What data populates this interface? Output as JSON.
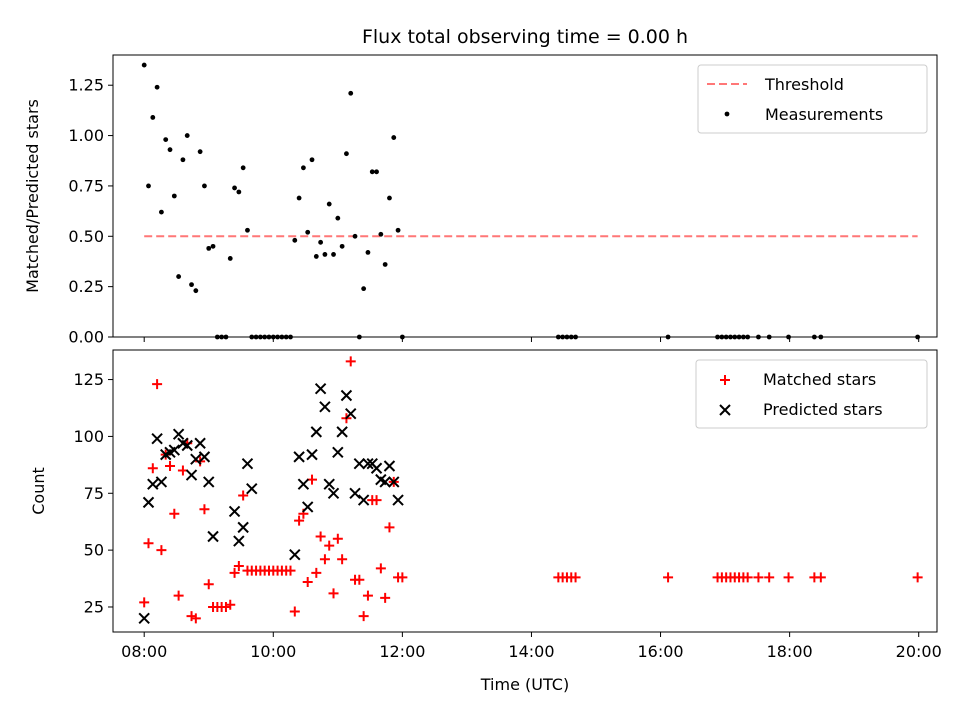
{
  "figure": {
    "title": "Flux total observing time = 0.00 h",
    "xlabel": "Time (UTC)"
  },
  "colors": {
    "threshold": "#ff7777",
    "measurements": "#000000",
    "matched": "#ff0000",
    "predicted": "#000000"
  },
  "chart_data": [
    {
      "type": "scatter",
      "panel": "top",
      "ylabel": "Matched/Predicted stars",
      "ylim": [
        0,
        1.4
      ],
      "xlim": [
        "07:31",
        "20:17"
      ],
      "yticks": [
        "0.00",
        "0.25",
        "0.50",
        "0.75",
        "1.00",
        "1.25"
      ],
      "grid": false,
      "legend_position": "top-right",
      "threshold": {
        "name": "Threshold",
        "value": 0.5,
        "x_range": [
          "08:00",
          "19:59"
        ]
      },
      "series": [
        {
          "name": "Measurements",
          "marker": "dot",
          "points": [
            [
              "08:00",
              1.35
            ],
            [
              "08:04",
              0.75
            ],
            [
              "08:08",
              1.09
            ],
            [
              "08:12",
              1.24
            ],
            [
              "08:16",
              0.62
            ],
            [
              "08:20",
              0.98
            ],
            [
              "08:24",
              0.93
            ],
            [
              "08:28",
              0.7
            ],
            [
              "08:32",
              0.3
            ],
            [
              "08:36",
              0.88
            ],
            [
              "08:40",
              1.0
            ],
            [
              "08:44",
              0.26
            ],
            [
              "08:48",
              0.23
            ],
            [
              "08:52",
              0.92
            ],
            [
              "08:56",
              0.75
            ],
            [
              "09:00",
              0.44
            ],
            [
              "09:04",
              0.45
            ],
            [
              "09:08",
              0.0
            ],
            [
              "09:12",
              0.0
            ],
            [
              "09:16",
              0.0
            ],
            [
              "09:20",
              0.39
            ],
            [
              "09:24",
              0.74
            ],
            [
              "09:28",
              0.72
            ],
            [
              "09:32",
              0.84
            ],
            [
              "09:36",
              0.53
            ],
            [
              "09:40",
              0.0
            ],
            [
              "09:44",
              0.0
            ],
            [
              "09:48",
              0.0
            ],
            [
              "09:52",
              0.0
            ],
            [
              "09:56",
              0.0
            ],
            [
              "10:00",
              0.0
            ],
            [
              "10:04",
              0.0
            ],
            [
              "10:08",
              0.0
            ],
            [
              "10:12",
              0.0
            ],
            [
              "10:16",
              0.0
            ],
            [
              "10:20",
              0.48
            ],
            [
              "10:24",
              0.69
            ],
            [
              "10:28",
              0.84
            ],
            [
              "10:32",
              0.52
            ],
            [
              "10:36",
              0.88
            ],
            [
              "10:40",
              0.4
            ],
            [
              "10:44",
              0.47
            ],
            [
              "10:48",
              0.41
            ],
            [
              "10:52",
              0.66
            ],
            [
              "10:56",
              0.41
            ],
            [
              "11:00",
              0.59
            ],
            [
              "11:04",
              0.45
            ],
            [
              "11:08",
              0.91
            ],
            [
              "11:12",
              1.21
            ],
            [
              "11:16",
              0.5
            ],
            [
              "11:20",
              0.0
            ],
            [
              "11:24",
              0.24
            ],
            [
              "11:28",
              0.42
            ],
            [
              "11:32",
              0.82
            ],
            [
              "11:36",
              0.82
            ],
            [
              "11:40",
              0.51
            ],
            [
              "11:44",
              0.36
            ],
            [
              "11:48",
              0.69
            ],
            [
              "11:52",
              0.99
            ],
            [
              "11:56",
              0.53
            ],
            [
              "12:00",
              0.0
            ],
            [
              "14:25",
              0.0
            ],
            [
              "14:29",
              0.0
            ],
            [
              "14:33",
              0.0
            ],
            [
              "14:37",
              0.0
            ],
            [
              "14:41",
              0.0
            ],
            [
              "16:07",
              0.0
            ],
            [
              "16:53",
              0.0
            ],
            [
              "16:57",
              0.0
            ],
            [
              "17:01",
              0.0
            ],
            [
              "17:05",
              0.0
            ],
            [
              "17:09",
              0.0
            ],
            [
              "17:13",
              0.0
            ],
            [
              "17:17",
              0.0
            ],
            [
              "17:21",
              0.0
            ],
            [
              "17:31",
              0.0
            ],
            [
              "17:41",
              0.0
            ],
            [
              "17:59",
              0.0
            ],
            [
              "18:23",
              0.0
            ],
            [
              "18:29",
              0.0
            ],
            [
              "19:59",
              0.0
            ]
          ]
        }
      ]
    },
    {
      "type": "scatter",
      "panel": "bottom",
      "ylabel": "Count",
      "ylim": [
        14,
        138
      ],
      "xlim": [
        "07:31",
        "20:17"
      ],
      "yticks": [
        "25",
        "50",
        "75",
        "100",
        "125"
      ],
      "xticks": [
        "08:00",
        "10:00",
        "12:00",
        "14:00",
        "16:00",
        "18:00",
        "20:00"
      ],
      "grid": false,
      "legend_position": "top-right",
      "series": [
        {
          "name": "Matched stars",
          "marker": "plus",
          "points": [
            [
              "08:00",
              27
            ],
            [
              "08:04",
              53
            ],
            [
              "08:08",
              86
            ],
            [
              "08:12",
              123
            ],
            [
              "08:16",
              50
            ],
            [
              "08:20",
              92
            ],
            [
              "08:24",
              87
            ],
            [
              "08:28",
              66
            ],
            [
              "08:32",
              30
            ],
            [
              "08:36",
              85
            ],
            [
              "08:40",
              97
            ],
            [
              "08:44",
              21
            ],
            [
              "08:48",
              20
            ],
            [
              "08:52",
              89
            ],
            [
              "08:56",
              68
            ],
            [
              "09:00",
              35
            ],
            [
              "09:04",
              25
            ],
            [
              "09:08",
              25
            ],
            [
              "09:12",
              25
            ],
            [
              "09:16",
              25
            ],
            [
              "09:20",
              26
            ],
            [
              "09:24",
              40
            ],
            [
              "09:28",
              43
            ],
            [
              "09:32",
              74
            ],
            [
              "09:36",
              41
            ],
            [
              "09:40",
              41
            ],
            [
              "09:44",
              41
            ],
            [
              "09:48",
              41
            ],
            [
              "09:52",
              41
            ],
            [
              "09:56",
              41
            ],
            [
              "10:00",
              41
            ],
            [
              "10:04",
              41
            ],
            [
              "10:08",
              41
            ],
            [
              "10:12",
              41
            ],
            [
              "10:16",
              41
            ],
            [
              "10:20",
              23
            ],
            [
              "10:24",
              63
            ],
            [
              "10:28",
              66
            ],
            [
              "10:32",
              36
            ],
            [
              "10:36",
              81
            ],
            [
              "10:40",
              40
            ],
            [
              "10:44",
              56
            ],
            [
              "10:48",
              46
            ],
            [
              "10:52",
              52
            ],
            [
              "10:56",
              31
            ],
            [
              "11:00",
              55
            ],
            [
              "11:04",
              46
            ],
            [
              "11:08",
              108
            ],
            [
              "11:12",
              133
            ],
            [
              "11:16",
              37
            ],
            [
              "11:20",
              37
            ],
            [
              "11:24",
              21
            ],
            [
              "11:28",
              30
            ],
            [
              "11:32",
              72
            ],
            [
              "11:36",
              72
            ],
            [
              "11:40",
              42
            ],
            [
              "11:44",
              29
            ],
            [
              "11:48",
              60
            ],
            [
              "11:52",
              80
            ],
            [
              "11:56",
              38
            ],
            [
              "12:00",
              38
            ],
            [
              "14:25",
              38
            ],
            [
              "14:29",
              38
            ],
            [
              "14:33",
              38
            ],
            [
              "14:37",
              38
            ],
            [
              "14:41",
              38
            ],
            [
              "16:07",
              38
            ],
            [
              "16:53",
              38
            ],
            [
              "16:57",
              38
            ],
            [
              "17:01",
              38
            ],
            [
              "17:05",
              38
            ],
            [
              "17:09",
              38
            ],
            [
              "17:13",
              38
            ],
            [
              "17:17",
              38
            ],
            [
              "17:21",
              38
            ],
            [
              "17:31",
              38
            ],
            [
              "17:41",
              38
            ],
            [
              "17:59",
              38
            ],
            [
              "18:23",
              38
            ],
            [
              "18:29",
              38
            ],
            [
              "19:59",
              38
            ]
          ]
        },
        {
          "name": "Predicted stars",
          "marker": "x",
          "points": [
            [
              "08:00",
              20
            ],
            [
              "08:04",
              71
            ],
            [
              "08:08",
              79
            ],
            [
              "08:12",
              99
            ],
            [
              "08:16",
              80
            ],
            [
              "08:20",
              92
            ],
            [
              "08:24",
              93
            ],
            [
              "08:28",
              94
            ],
            [
              "08:32",
              101
            ],
            [
              "08:36",
              97
            ],
            [
              "08:40",
              96
            ],
            [
              "08:44",
              83
            ],
            [
              "08:48",
              90
            ],
            [
              "08:52",
              97
            ],
            [
              "08:56",
              91
            ],
            [
              "09:00",
              80
            ],
            [
              "09:04",
              56
            ],
            [
              "09:24",
              67
            ],
            [
              "09:28",
              54
            ],
            [
              "09:32",
              60
            ],
            [
              "09:36",
              88
            ],
            [
              "09:40",
              77
            ],
            [
              "10:20",
              48
            ],
            [
              "10:24",
              91
            ],
            [
              "10:28",
              79
            ],
            [
              "10:32",
              69
            ],
            [
              "10:36",
              92
            ],
            [
              "10:40",
              102
            ],
            [
              "10:44",
              121
            ],
            [
              "10:48",
              113
            ],
            [
              "10:52",
              79
            ],
            [
              "10:56",
              75
            ],
            [
              "11:00",
              93
            ],
            [
              "11:04",
              102
            ],
            [
              "11:08",
              118
            ],
            [
              "11:12",
              110
            ],
            [
              "11:16",
              75
            ],
            [
              "11:20",
              88
            ],
            [
              "11:24",
              72
            ],
            [
              "11:28",
              88
            ],
            [
              "11:32",
              88
            ],
            [
              "11:36",
              86
            ],
            [
              "11:40",
              81
            ],
            [
              "11:44",
              80
            ],
            [
              "11:48",
              87
            ],
            [
              "11:52",
              80
            ],
            [
              "11:56",
              72
            ]
          ]
        }
      ]
    }
  ]
}
